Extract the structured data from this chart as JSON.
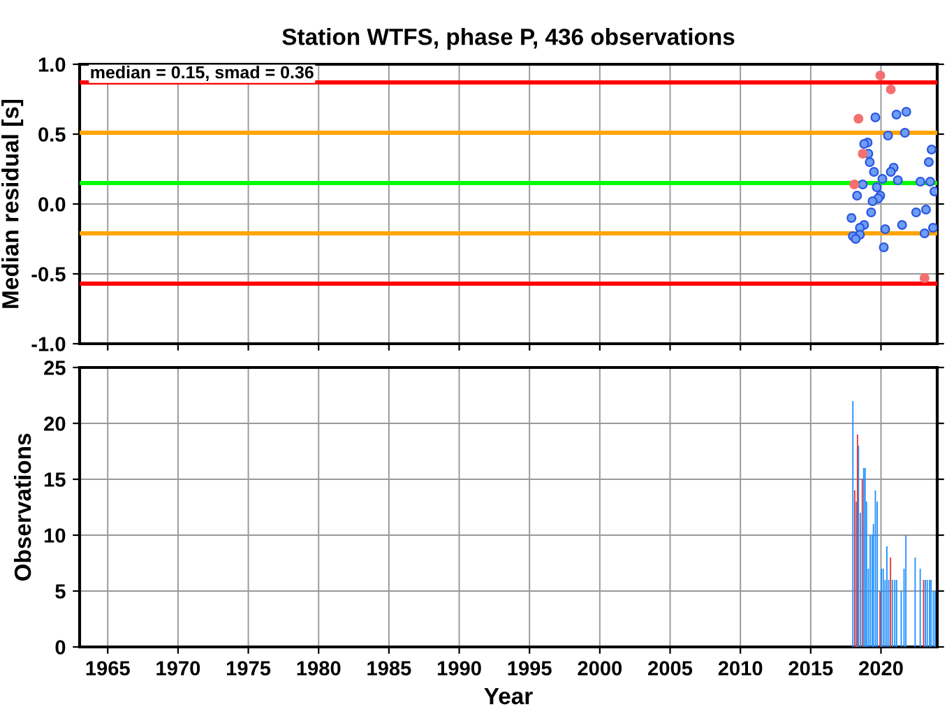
{
  "chart_data": [
    {
      "type": "scatter",
      "title": "Station WTFS, phase P, 436 observations",
      "ylabel": "Median residual [s]",
      "annotations": [
        "median = 0.15, smad = 0.36"
      ],
      "xlim": [
        1963,
        2024
      ],
      "xticks": [
        1965,
        1970,
        1975,
        1980,
        1985,
        1990,
        1995,
        2000,
        2005,
        2010,
        2015,
        2020
      ],
      "ylim": [
        -1,
        1
      ],
      "yticks": [
        {
          "value": -1,
          "label": "-1.0"
        },
        {
          "value": -0.5,
          "label": "-0.5"
        },
        {
          "value": 0,
          "label": "0.0"
        },
        {
          "value": 0.5,
          "label": "0.5"
        },
        {
          "value": 1,
          "label": "1.0"
        }
      ],
      "tick_labels": "y",
      "grid": true,
      "legend": false,
      "marker": "circle",
      "ref_lines": [
        {
          "axis": "y",
          "value": 0.87,
          "color": "#ff0000"
        },
        {
          "axis": "y",
          "value": 0.51,
          "color": "#ffa500"
        },
        {
          "axis": "y",
          "value": 0.15,
          "color": "#00ff00"
        },
        {
          "axis": "y",
          "value": -0.21,
          "color": "#ffa500"
        },
        {
          "axis": "y",
          "value": -0.57,
          "color": "#ff0000"
        }
      ],
      "series": [
        {
          "color": "#6e9ef5",
          "x": [
            2019.6,
            2021.1,
            2021.8,
            2020.5,
            2021.7,
            2019.05,
            2018.8,
            2019.1,
            2019.2,
            2023.6,
            2023.4,
            2020.9,
            2020.7,
            2019.5,
            2020.1,
            2021.2,
            2022.8,
            2023.5,
            2023.8,
            2018.7,
            2019.7,
            2019.95,
            2018.3,
            2019.8,
            2019.4,
            2019.3,
            2023.2,
            2022.5,
            2017.9,
            2018.8,
            2018.5,
            2020.3,
            2021.5,
            2023.7,
            2023.1,
            2018.5,
            2018.0,
            2018.2,
            2020.2
          ],
          "values": [
            0.62,
            0.64,
            0.66,
            0.49,
            0.51,
            0.44,
            0.43,
            0.36,
            0.3,
            0.39,
            0.3,
            0.26,
            0.23,
            0.23,
            0.18,
            0.17,
            0.16,
            0.16,
            0.09,
            0.14,
            0.12,
            0.06,
            0.06,
            0.04,
            0.02,
            -0.06,
            -0.04,
            -0.06,
            -0.1,
            -0.15,
            -0.17,
            -0.18,
            -0.15,
            -0.17,
            -0.21,
            -0.22,
            -0.23,
            -0.25,
            -0.31
          ]
        },
        {
          "color": "#f47070",
          "x": [
            2019.95,
            2020.7,
            2018.4,
            2018.7,
            2018.1,
            2023.1
          ],
          "values": [
            0.92,
            0.82,
            0.61,
            0.36,
            0.14,
            -0.53
          ]
        }
      ]
    },
    {
      "type": "bar",
      "xlabel": "Year",
      "ylabel": "Observations",
      "xlim": [
        1963,
        2024
      ],
      "xticks": [
        1965,
        1970,
        1975,
        1980,
        1985,
        1990,
        1995,
        2000,
        2005,
        2010,
        2015,
        2020
      ],
      "ylim": [
        0,
        25
      ],
      "yticks": [
        0,
        5,
        10,
        15,
        20,
        25
      ],
      "grid": true,
      "legend": false,
      "series": [
        {
          "color": "#1e90ff",
          "x": [
            2018.0,
            2018.25,
            2018.4,
            2018.53,
            2018.77,
            2018.87,
            2018.97,
            2019.1,
            2019.23,
            2019.37,
            2019.46,
            2019.6,
            2019.73,
            2020.03,
            2020.16,
            2020.29,
            2020.42,
            2020.55,
            2020.81,
            2020.98,
            2021.11,
            2021.44,
            2021.64,
            2021.77,
            2022.43,
            2022.79,
            2023.16,
            2023.29,
            2023.46,
            2023.56,
            2023.72,
            2023.85
          ],
          "values": [
            22,
            13,
            18,
            12,
            16,
            16,
            13,
            7,
            10,
            10,
            11,
            14,
            13,
            7,
            7,
            6,
            9,
            6,
            6,
            6,
            6,
            5,
            7,
            10,
            8,
            7,
            6,
            6,
            6,
            6,
            5,
            5
          ]
        },
        {
          "color": "#e83030",
          "x": [
            2018.13,
            2018.33,
            2018.67,
            2019.93,
            2020.68,
            2023.03
          ],
          "values": [
            14,
            19,
            15,
            5,
            8,
            6
          ]
        }
      ]
    }
  ]
}
